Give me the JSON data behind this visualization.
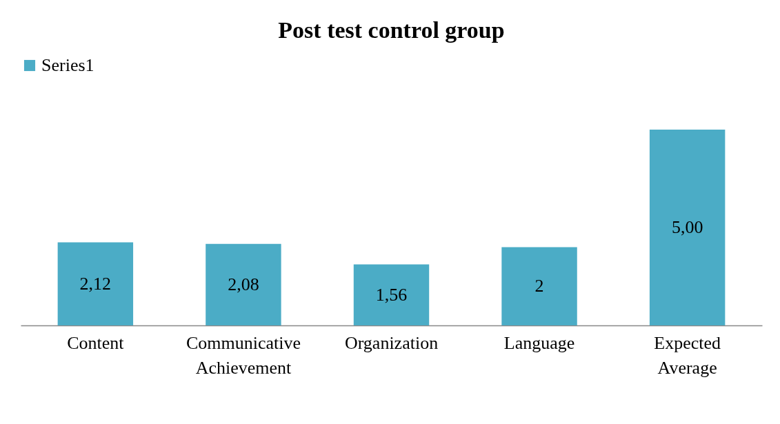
{
  "chart_data": {
    "type": "bar",
    "title": "Post test control group",
    "categories": [
      "Content",
      "Communicative Achievement",
      "Organization",
      "Language",
      "Expected Average"
    ],
    "series": [
      {
        "name": "Series1",
        "color": "#4bacc6",
        "values": [
          2.12,
          2.08,
          1.56,
          2,
          5.0
        ],
        "value_labels": [
          "2,12",
          "2,08",
          "1,56",
          "2",
          "5,00"
        ]
      }
    ],
    "legend": "top",
    "grid": false,
    "tick_labels": "x"
  }
}
